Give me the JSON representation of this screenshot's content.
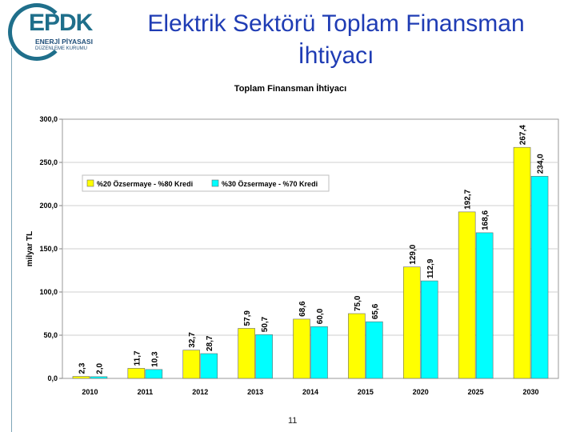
{
  "logo": {
    "mark": "EPDK",
    "line1": "ENERJİ PİYASASI",
    "line2": "DÜZENLEME KURUMU"
  },
  "slide": {
    "title_line1": "Elektrik Sektörü Toplam Finansman",
    "title_line2": "İhtiyacı",
    "page_number": "11"
  },
  "colors": {
    "series1": "#ffff00",
    "series2": "#00ffff",
    "grid": "#cfcfcf",
    "accent_title": "#1f3cb4"
  },
  "chart_data": {
    "type": "bar",
    "title": "Toplam Finansman İhtiyacı",
    "ylabel": "milyar TL",
    "xlabel": "",
    "ylim": [
      0,
      300
    ],
    "yticks": [
      "0,0",
      "50,0",
      "100,0",
      "150,0",
      "200,0",
      "250,0",
      "300,0"
    ],
    "grid": true,
    "legend_position": "top-left",
    "categories": [
      "2010",
      "2011",
      "2012",
      "2013",
      "2014",
      "2015",
      "2020",
      "2025",
      "2030"
    ],
    "series": [
      {
        "name": "%20 Özsermaye - %80 Kredi",
        "values": [
          2.3,
          11.7,
          32.7,
          57.9,
          68.6,
          75.0,
          129.0,
          192.7,
          267.4
        ],
        "labels": [
          "2,3",
          "11,7",
          "32,7",
          "57,9",
          "68,6",
          "75,0",
          "129,0",
          "192,7",
          "267,4"
        ]
      },
      {
        "name": "%30 Özsermaye - %70 Kredi",
        "values": [
          2.0,
          10.3,
          28.7,
          50.7,
          60.0,
          65.6,
          112.9,
          168.6,
          234.0
        ],
        "labels": [
          "2,0",
          "10,3",
          "28,7",
          "50,7",
          "60,0",
          "65,6",
          "112,9",
          "168,6",
          "234,0"
        ]
      }
    ]
  }
}
